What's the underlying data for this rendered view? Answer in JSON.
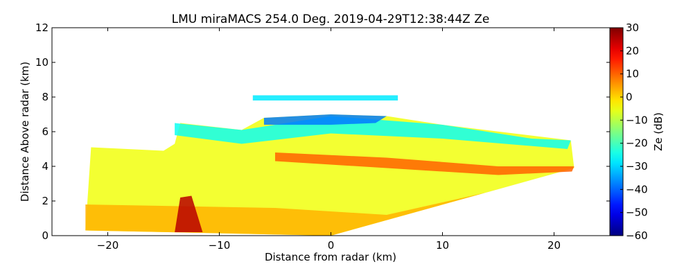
{
  "chart_data": {
    "type": "heatmap",
    "title": "LMU miraMACS 254.0 Deg. 2019-04-29T12:38:44Z  Ze",
    "xlabel": "Distance from radar (km)",
    "ylabel": "Distance Above radar  (km)",
    "xlim": [
      -25,
      25
    ],
    "ylim": [
      0,
      12
    ],
    "x_ticks": [
      -20,
      -10,
      0,
      10,
      20
    ],
    "x_tick_labels": [
      "−20",
      "−10",
      "0",
      "10",
      "20"
    ],
    "y_ticks": [
      0,
      2,
      4,
      6,
      8,
      10,
      12
    ],
    "y_tick_labels": [
      "0",
      "2",
      "4",
      "6",
      "8",
      "10",
      "12"
    ],
    "colorbar": {
      "label": "Ze (dB)",
      "range": [
        -60,
        30
      ],
      "ticks": [
        30,
        20,
        10,
        0,
        -10,
        -20,
        -30,
        -40,
        -50,
        -60
      ],
      "tick_labels": [
        "30",
        "20",
        "10",
        "0",
        "−10",
        "−20",
        "−30",
        "−40",
        "−50",
        "−60"
      ],
      "colormap": "jet"
    },
    "echo_regions": [
      {
        "name": "scan-sector",
        "ze_db": -5,
        "polygon_km": [
          [
            -22,
            0.3
          ],
          [
            -21.5,
            5.1
          ],
          [
            -15,
            4.9
          ],
          [
            -14,
            5.3
          ],
          [
            -13.5,
            6.5
          ],
          [
            -8,
            6.1
          ],
          [
            -6,
            6.8
          ],
          [
            0,
            7.0
          ],
          [
            5,
            6.9
          ],
          [
            10,
            6.4
          ],
          [
            21.5,
            5.5
          ],
          [
            21.8,
            3.9
          ],
          [
            0,
            0
          ],
          [
            -22,
            0.3
          ]
        ]
      },
      {
        "name": "low-level-band",
        "ze_db": 3,
        "polygon_km": [
          [
            -22,
            0.3
          ],
          [
            -22,
            1.8
          ],
          [
            -5,
            1.6
          ],
          [
            5,
            1.2
          ],
          [
            14,
            2.5
          ],
          [
            21.8,
            3.9
          ],
          [
            0,
            0
          ],
          [
            -22,
            0.3
          ]
        ]
      },
      {
        "name": "upper-cloud-top",
        "ze_db": -25,
        "polygon_km": [
          [
            -14,
            6.5
          ],
          [
            -8,
            6.1
          ],
          [
            0,
            6.9
          ],
          [
            10,
            6.4
          ],
          [
            18,
            5.6
          ],
          [
            21.5,
            5.5
          ],
          [
            21.2,
            5.0
          ],
          [
            10,
            5.6
          ],
          [
            0,
            5.9
          ],
          [
            -8,
            5.3
          ],
          [
            -14,
            5.8
          ]
        ]
      },
      {
        "name": "mid-level-enhanced-layer",
        "ze_db": 10,
        "polygon_km": [
          [
            -5,
            4.8
          ],
          [
            5,
            4.5
          ],
          [
            15,
            4.0
          ],
          [
            21.8,
            4.0
          ],
          [
            21.6,
            3.7
          ],
          [
            15,
            3.5
          ],
          [
            5,
            3.9
          ],
          [
            -5,
            4.3
          ]
        ]
      },
      {
        "name": "cloud-top-minimum",
        "ze_db": -38,
        "polygon_km": [
          [
            -6,
            6.8
          ],
          [
            0,
            7.0
          ],
          [
            5,
            6.9
          ],
          [
            4,
            6.5
          ],
          [
            0,
            6.4
          ],
          [
            -6,
            6.4
          ]
        ]
      },
      {
        "name": "isolated-upper-layer",
        "ze_db": -28,
        "polygon_km": [
          [
            -7,
            8.1
          ],
          [
            6,
            8.1
          ],
          [
            6,
            7.8
          ],
          [
            -7,
            7.8
          ]
        ]
      },
      {
        "name": "near-surface-core",
        "ze_db": 25,
        "polygon_km": [
          [
            -14,
            0.2
          ],
          [
            -13.5,
            2.2
          ],
          [
            -12.5,
            2.3
          ],
          [
            -11.5,
            0.2
          ]
        ]
      }
    ]
  }
}
